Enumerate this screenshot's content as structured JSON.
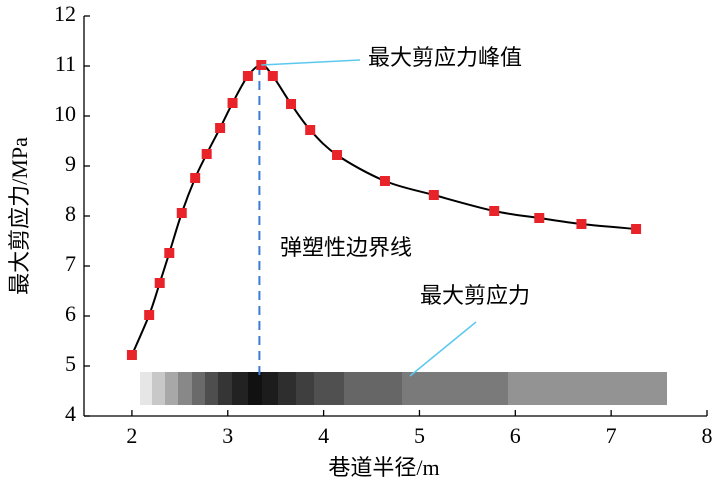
{
  "chart_data": {
    "type": "line",
    "x_label": "巷道半径/m",
    "y_label": "最大剪应力/MPa",
    "x": [
      2.0,
      2.18,
      2.29,
      2.39,
      2.52,
      2.66,
      2.78,
      2.92,
      3.05,
      3.21,
      3.35,
      3.47,
      3.66,
      3.86,
      4.14,
      4.64,
      5.15,
      5.78,
      6.25,
      6.69,
      7.26
    ],
    "values": [
      5.22,
      6.02,
      6.66,
      7.26,
      8.06,
      8.76,
      9.24,
      9.76,
      10.26,
      10.8,
      11.02,
      10.8,
      10.24,
      9.72,
      9.22,
      8.7,
      8.42,
      8.1,
      7.96,
      7.84,
      7.74
    ],
    "line_color": "#000000",
    "marker_color": "#e8242a",
    "xlim": [
      1.5,
      8
    ],
    "xticks": [
      2,
      3,
      4,
      5,
      6,
      7,
      8
    ],
    "ylim": [
      4,
      12
    ],
    "yticks": [
      4,
      5,
      6,
      7,
      8,
      9,
      10,
      11,
      12
    ],
    "peak_label": "最大剪应力峰值",
    "boundary": {
      "label": "弹塑性边界线",
      "x": 3.33,
      "color": "#3a7bd5"
    },
    "bar_label": "最大剪应力",
    "leader_color": "#5bc8f0"
  }
}
